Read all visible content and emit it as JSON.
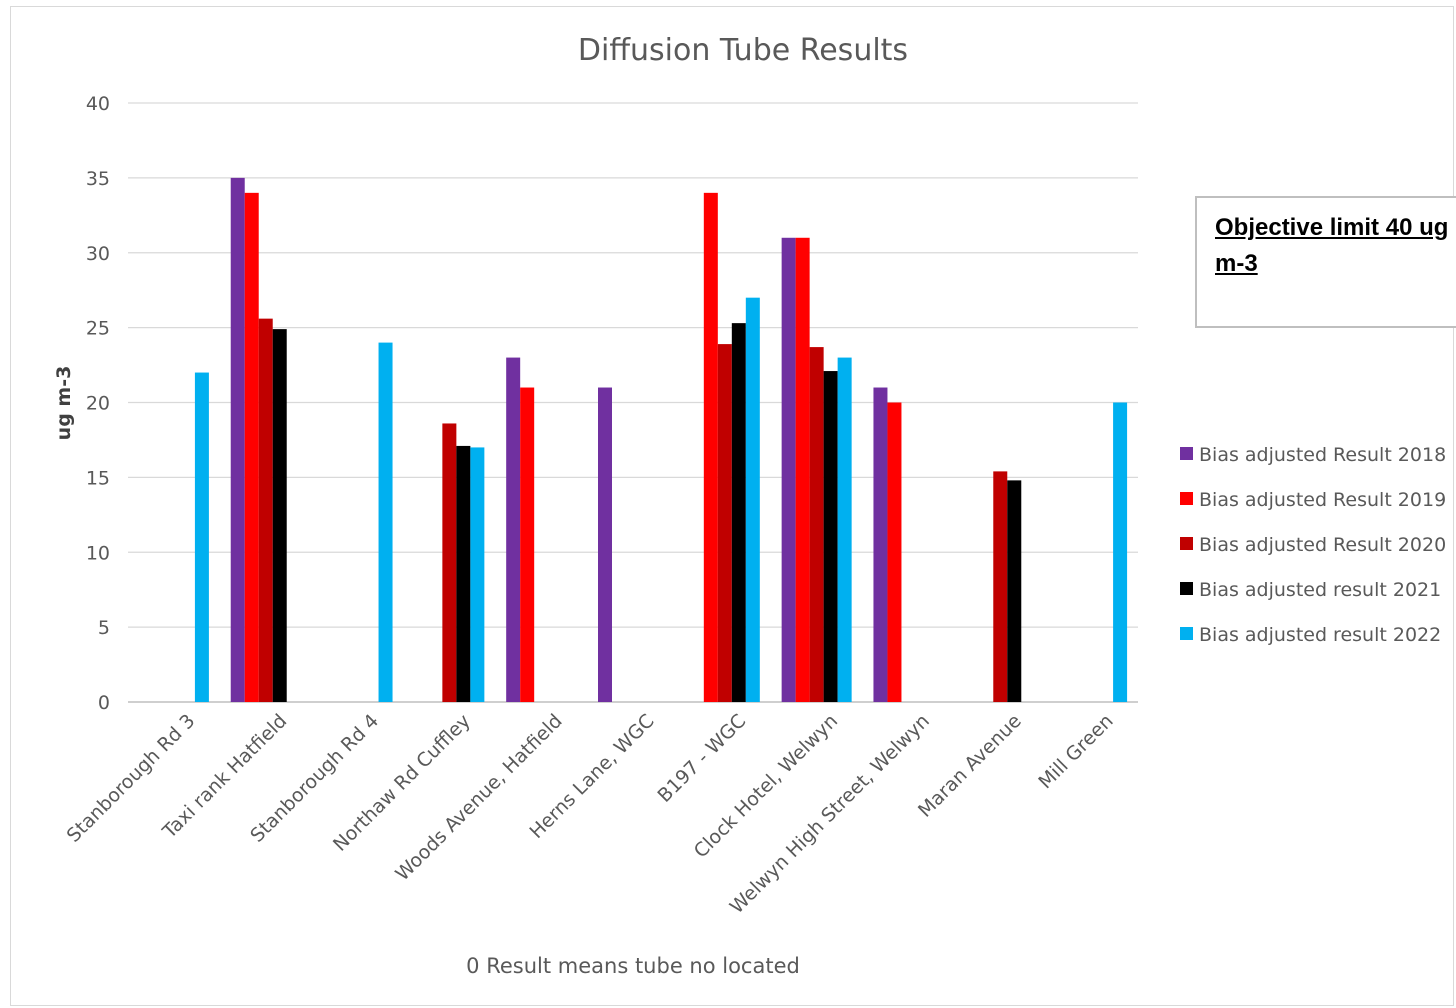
{
  "chart_data": {
    "type": "bar",
    "title": "Diffusion Tube Results",
    "ylabel": "ug m-3",
    "xlabel": "",
    "ylim": [
      0,
      40
    ],
    "yticks": [
      0,
      5,
      10,
      15,
      20,
      25,
      30,
      35,
      40
    ],
    "grid": true,
    "legend_position": "right",
    "categories": [
      "Stanborough Rd 3",
      "Taxi rank Hatfield",
      "Stanborough Rd 4",
      "Northaw Rd Cuffley",
      "Woods Avenue, Hatfield",
      "Herns Lane, WGC",
      "B197 - WGC",
      "Clock Hotel, Welwyn",
      "Welwyn High Street, Welwyn",
      "Maran Avenue",
      "Mill Green"
    ],
    "series": [
      {
        "name": "Bias adjusted Result 2018",
        "color": "#7030a0",
        "values": [
          0,
          35,
          0,
          0,
          23,
          21,
          0,
          31,
          21,
          0,
          0
        ]
      },
      {
        "name": "Bias adjusted Result 2019",
        "color": "#ff0000",
        "values": [
          0,
          34,
          0,
          0,
          21,
          0,
          34,
          31,
          20,
          0,
          0
        ]
      },
      {
        "name": "Bias adjusted Result 2020",
        "color": "#c00000",
        "values": [
          0,
          25.6,
          0,
          18.6,
          0,
          0,
          23.9,
          23.7,
          0,
          15.4,
          0
        ]
      },
      {
        "name": "Bias adjusted result 2021",
        "color": "#000000",
        "values": [
          0,
          24.9,
          0,
          17.1,
          0,
          0,
          25.3,
          22.1,
          0,
          14.8,
          0
        ]
      },
      {
        "name": "Bias adjusted result 2022",
        "color": "#00b0f0",
        "values": [
          22,
          0,
          24,
          17,
          0,
          0,
          27,
          23,
          0,
          0,
          20
        ]
      }
    ],
    "annotation": "Objective limit  40 ug m-3",
    "note": "0 Result  means tube no located"
  }
}
